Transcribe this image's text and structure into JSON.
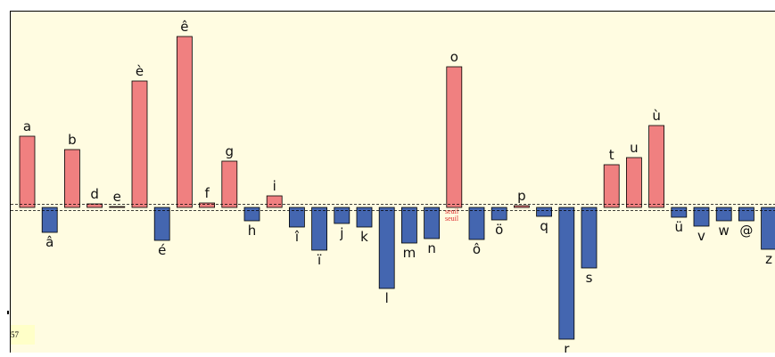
{
  "chart_data": {
    "type": "bar",
    "baseline": 0,
    "threshold_band": [
      -5,
      5
    ],
    "colors": {
      "positive": "#F08080",
      "negative": "#4466B0",
      "threshold": "#E03030",
      "background": "#FFFCE1"
    },
    "bars": [
      {
        "label": "a",
        "value": 80
      },
      {
        "label": "â",
        "value": -28
      },
      {
        "label": "b",
        "value": 65
      },
      {
        "label": "d",
        "value": 4
      },
      {
        "label": "e",
        "value": 1
      },
      {
        "label": "è",
        "value": 142
      },
      {
        "label": "é",
        "value": -37
      },
      {
        "label": "ê",
        "value": 192
      },
      {
        "label": "f",
        "value": 5
      },
      {
        "label": "g",
        "value": 52
      },
      {
        "label": "h",
        "value": -15
      },
      {
        "label": "i",
        "value": 13
      },
      {
        "label": "î",
        "value": -22
      },
      {
        "label": "ï",
        "value": -48
      },
      {
        "label": "j",
        "value": -18
      },
      {
        "label": "k",
        "value": -22
      },
      {
        "label": "l",
        "value": -91
      },
      {
        "label": "m",
        "value": -40
      },
      {
        "label": "n",
        "value": -35
      },
      {
        "label": "o",
        "value": 158
      },
      {
        "label": "ô",
        "value": -36
      },
      {
        "label": "ö",
        "value": -14
      },
      {
        "label": "p",
        "value": 2
      },
      {
        "label": "q",
        "value": -10
      },
      {
        "label": "r",
        "value": -148
      },
      {
        "label": "s",
        "value": -68
      },
      {
        "label": "t",
        "value": 48
      },
      {
        "label": "u",
        "value": 56
      },
      {
        "label": "ù",
        "value": 92
      },
      {
        "label": "ü",
        "value": -11
      },
      {
        "label": "v",
        "value": -21
      },
      {
        "label": "w",
        "value": -15
      },
      {
        "label": "@",
        "value": -15
      },
      {
        "label": "z",
        "value": -47
      }
    ],
    "threshold_labels": [
      "seuil",
      "seuil"
    ]
  },
  "corner": {
    "value_text": "57"
  }
}
